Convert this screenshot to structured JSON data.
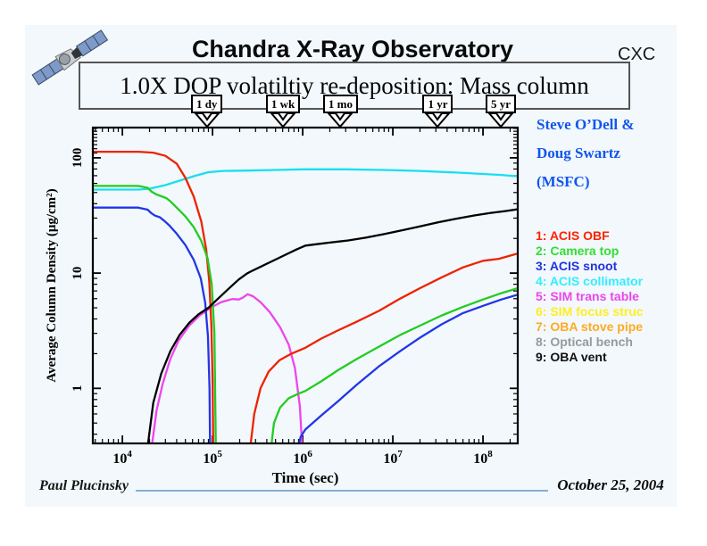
{
  "header": {
    "title": "Chandra X-Ray Observatory",
    "org": "CXC",
    "subtitle": "1.0X DOP volatiltiy re-deposition: Mass column"
  },
  "credit": {
    "line1": "Steve O’Dell &",
    "line2": "Doug Swartz",
    "line3": "(MSFC)",
    "color": "#1155ee"
  },
  "time_markers": [
    {
      "label": "1 dy",
      "t_sec": 86400
    },
    {
      "label": "1 wk",
      "t_sec": 604800
    },
    {
      "label": "1 mo",
      "t_sec": 2628000
    },
    {
      "label": "1 yr",
      "t_sec": 31557600
    },
    {
      "label": "5 yr",
      "t_sec": 157788000
    }
  ],
  "legend": {
    "items": [
      {
        "label": "1: ACIS OBF",
        "color": "#ff2200"
      },
      {
        "label": "2: Camera top",
        "color": "#33dd33"
      },
      {
        "label": "3: ACIS snoot",
        "color": "#2233dd"
      },
      {
        "label": "4: ACIS collimator",
        "color": "#33eeff"
      },
      {
        "label": "5: SIM trans table",
        "color": "#ee44ee"
      },
      {
        "label": "6: SIM focus struc",
        "color": "#ffee22"
      },
      {
        "label": "7: OBA stove pipe",
        "color": "#ffaa22"
      },
      {
        "label": "8: Optical bench",
        "color": "#999999"
      },
      {
        "label": "9: OBA vent",
        "color": "#111111"
      }
    ]
  },
  "footer": {
    "author": "Paul Plucinsky",
    "date": "October 25, 2004"
  },
  "chart_data": {
    "type": "line",
    "x_scale": "log",
    "y_scale": "log",
    "xlabel": "Time (sec)",
    "ylabel": "Average Column Density (μg/cm²)",
    "xlim": [
      4700,
      243000000
    ],
    "ylim": [
      0.333,
      183
    ],
    "x_major_ticks": [
      10000,
      100000,
      1000000,
      10000000,
      100000000
    ],
    "y_major_ticks": [
      1,
      10,
      100
    ],
    "y_tick_labels": [
      "1",
      "10",
      "100"
    ],
    "series": [
      {
        "name": "ACIS collimator",
        "color": "#18dff0",
        "segments": [
          [
            [
              4700,
              53
            ],
            [
              15000,
              53
            ],
            [
              20000,
              54
            ],
            [
              30000,
              58
            ],
            [
              45000,
              64
            ],
            [
              65000,
              70
            ],
            [
              90000,
              75
            ],
            [
              130000,
              77
            ],
            [
              250000,
              77.5
            ],
            [
              500000,
              78.5
            ],
            [
              1000000,
              79.5
            ],
            [
              3000000,
              79.5
            ],
            [
              8000000,
              78.5
            ],
            [
              20000000,
              77
            ],
            [
              50000000,
              74.5
            ],
            [
              100000000,
              72.5
            ],
            [
              160000000,
              71
            ],
            [
              243000000,
              69
            ]
          ]
        ]
      },
      {
        "name": "SIM trans table",
        "color": "#ee44ee",
        "segments": [
          [
            [
              20500,
              0.26
            ],
            [
              24000,
              0.65
            ],
            [
              28000,
              1.1
            ],
            [
              34000,
              1.8
            ],
            [
              42000,
              2.6
            ],
            [
              55000,
              3.5
            ],
            [
              72000,
              4.3
            ],
            [
              95000,
              5.0
            ],
            [
              125000,
              5.6
            ],
            [
              165000,
              5.95
            ],
            [
              195000,
              5.9
            ],
            [
              215000,
              6.1
            ],
            [
              245000,
              6.55
            ],
            [
              280000,
              6.3
            ],
            [
              340000,
              5.6
            ],
            [
              430000,
              4.6
            ],
            [
              560000,
              3.4
            ],
            [
              700000,
              2.4
            ],
            [
              820000,
              1.5
            ],
            [
              930000,
              0.7
            ],
            [
              1000000,
              0.26
            ]
          ]
        ]
      },
      {
        "name": "ACIS OBF",
        "color": "#ee2200",
        "segments": [
          [
            [
              4700,
              113
            ],
            [
              15000,
              113
            ],
            [
              22000,
              111
            ],
            [
              30000,
              104
            ],
            [
              40000,
              89
            ],
            [
              50000,
              67
            ],
            [
              62000,
              46
            ],
            [
              75000,
              28
            ],
            [
              85000,
              16
            ],
            [
              92000,
              8.5
            ],
            [
              97000,
              3.5
            ],
            [
              100000,
              1.2
            ],
            [
              102000,
              0.26
            ]
          ],
          [
            [
              255000,
              0.26
            ],
            [
              290000,
              0.6
            ],
            [
              340000,
              1.0
            ],
            [
              420000,
              1.4
            ],
            [
              550000,
              1.75
            ],
            [
              750000,
              2.0
            ],
            [
              1070000,
              2.25
            ],
            [
              1600000,
              2.7
            ],
            [
              2500000,
              3.2
            ],
            [
              4000000,
              3.8
            ],
            [
              7000000,
              4.7
            ],
            [
              12000000,
              6.0
            ],
            [
              20000000,
              7.4
            ],
            [
              35000000,
              9.2
            ],
            [
              60000000,
              11.2
            ],
            [
              100000000,
              12.8
            ],
            [
              150000000,
              13.3
            ],
            [
              243000000,
              14.8
            ]
          ]
        ]
      },
      {
        "name": "Camera top",
        "color": "#22cc22",
        "segments": [
          [
            [
              4700,
              57
            ],
            [
              15000,
              57
            ],
            [
              19000,
              55
            ],
            [
              21000,
              51
            ],
            [
              24000,
              48
            ],
            [
              28000,
              46
            ],
            [
              31000,
              44.5
            ],
            [
              34000,
              42
            ],
            [
              40000,
              37
            ],
            [
              50000,
              31
            ],
            [
              62000,
              25
            ],
            [
              75000,
              19
            ],
            [
              88000,
              13.5
            ],
            [
              98000,
              8
            ],
            [
              105000,
              3
            ],
            [
              109000,
              0.26
            ]
          ],
          [
            [
              435000,
              0.26
            ],
            [
              480000,
              0.5
            ],
            [
              560000,
              0.68
            ],
            [
              700000,
              0.82
            ],
            [
              900000,
              0.9
            ],
            [
              1070000,
              0.95
            ],
            [
              1600000,
              1.15
            ],
            [
              2500000,
              1.45
            ],
            [
              4000000,
              1.8
            ],
            [
              7000000,
              2.3
            ],
            [
              12000000,
              2.9
            ],
            [
              20000000,
              3.5
            ],
            [
              35000000,
              4.3
            ],
            [
              60000000,
              5.1
            ],
            [
              100000000,
              5.9
            ],
            [
              160000000,
              6.7
            ],
            [
              243000000,
              7.4
            ]
          ]
        ]
      },
      {
        "name": "ACIS snoot",
        "color": "#2236e6",
        "segments": [
          [
            [
              4700,
              37
            ],
            [
              15000,
              37
            ],
            [
              19000,
              35.5
            ],
            [
              21000,
              33
            ],
            [
              23000,
              31.5
            ],
            [
              26000,
              30.5
            ],
            [
              29000,
              28.5
            ],
            [
              33000,
              26
            ],
            [
              40000,
              22
            ],
            [
              50000,
              17.5
            ],
            [
              62000,
              13
            ],
            [
              74000,
              9
            ],
            [
              83000,
              5.5
            ],
            [
              89000,
              2.8
            ],
            [
              92500,
              1.0
            ],
            [
              94000,
              0.26
            ]
          ],
          [
            [
              850000,
              0.26
            ],
            [
              950000,
              0.38
            ],
            [
              1070000,
              0.44
            ],
            [
              1600000,
              0.58
            ],
            [
              2500000,
              0.78
            ],
            [
              4000000,
              1.08
            ],
            [
              7000000,
              1.55
            ],
            [
              12000000,
              2.1
            ],
            [
              20000000,
              2.75
            ],
            [
              35000000,
              3.6
            ],
            [
              60000000,
              4.5
            ],
            [
              100000000,
              5.2
            ],
            [
              160000000,
              5.9
            ],
            [
              243000000,
              6.5
            ]
          ]
        ]
      },
      {
        "name": "OBA vent",
        "color": "#000000",
        "segments": [
          [
            [
              18500,
              0.26
            ],
            [
              22000,
              0.75
            ],
            [
              27000,
              1.35
            ],
            [
              34000,
              2.1
            ],
            [
              43000,
              2.9
            ],
            [
              55000,
              3.7
            ],
            [
              70000,
              4.4
            ],
            [
              90000,
              5.0
            ],
            [
              115000,
              6.0
            ],
            [
              150000,
              7.3
            ],
            [
              195000,
              8.8
            ],
            [
              240000,
              9.9
            ],
            [
              265000,
              10.3
            ],
            [
              330000,
              11.2
            ],
            [
              450000,
              12.6
            ],
            [
              620000,
              14.2
            ],
            [
              850000,
              16
            ],
            [
              1070000,
              17.3
            ],
            [
              1400000,
              17.8
            ],
            [
              2000000,
              18.4
            ],
            [
              3200000,
              19.2
            ],
            [
              5000000,
              20.3
            ],
            [
              8000000,
              21.8
            ],
            [
              13000000,
              23.6
            ],
            [
              20000000,
              25.4
            ],
            [
              32000000,
              27.6
            ],
            [
              50000000,
              29.6
            ],
            [
              80000000,
              31.6
            ],
            [
              120000000,
              33.2
            ],
            [
              180000000,
              34.6
            ],
            [
              243000000,
              35.8
            ]
          ]
        ]
      }
    ]
  }
}
